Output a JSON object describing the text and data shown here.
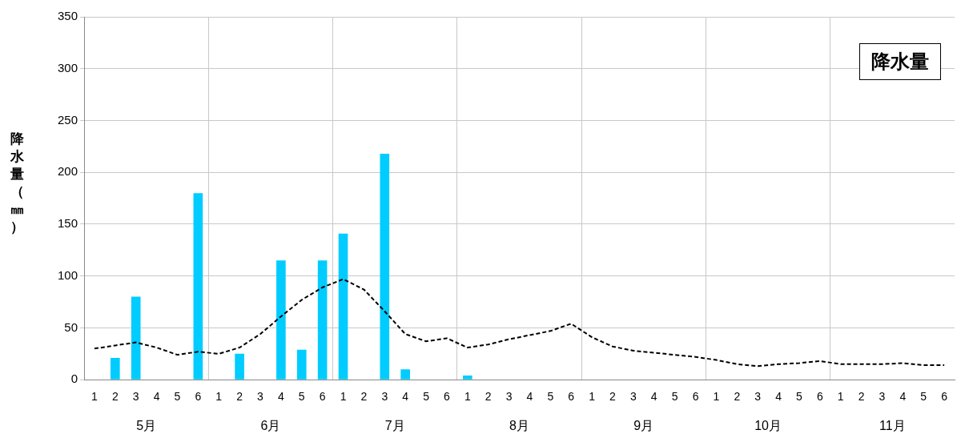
{
  "chart_data": {
    "type": "bar",
    "title": "降水量",
    "ylabel": "降水量（㎜）",
    "categories": [
      "1",
      "2",
      "3",
      "4",
      "5",
      "6",
      "1",
      "2",
      "3",
      "4",
      "5",
      "6",
      "1",
      "2",
      "3",
      "4",
      "5",
      "6",
      "1",
      "2",
      "3",
      "4",
      "5",
      "6",
      "1",
      "2",
      "3",
      "4",
      "5",
      "6",
      "1",
      "2",
      "3",
      "4",
      "5",
      "6",
      "1",
      "2",
      "3",
      "4",
      "5",
      "6"
    ],
    "annotations": [
      "5月",
      "6月",
      "7月",
      "8月",
      "9月",
      "10月",
      "11月"
    ],
    "series": [
      {
        "color": "#00ccff",
        "values": [
          0,
          21,
          80,
          0,
          0,
          180,
          0,
          25,
          0,
          115,
          29,
          115,
          141,
          0,
          218,
          10,
          0,
          0,
          4,
          0,
          0,
          0,
          0,
          0,
          0,
          0,
          0,
          0,
          0,
          0,
          0,
          0,
          0,
          0,
          0,
          0,
          0,
          0,
          0,
          0,
          0,
          0
        ]
      },
      {
        "type": "line",
        "color": "#000000",
        "line_style": "dashed",
        "marker": "none",
        "values": [
          30,
          33,
          36,
          31,
          24,
          27,
          25,
          31,
          44,
          61,
          77,
          89,
          97,
          87,
          66,
          44,
          37,
          40,
          31,
          34,
          39,
          43,
          47,
          54,
          41,
          32,
          28,
          26,
          24,
          22,
          19,
          15,
          13,
          15,
          16,
          18,
          15,
          15,
          15,
          16,
          14,
          14
        ]
      }
    ],
    "ylim": [
      0,
      350
    ],
    "yticks": [
      0,
      50,
      100,
      150,
      200,
      250,
      300,
      350
    ],
    "grid": true,
    "legend": false
  }
}
